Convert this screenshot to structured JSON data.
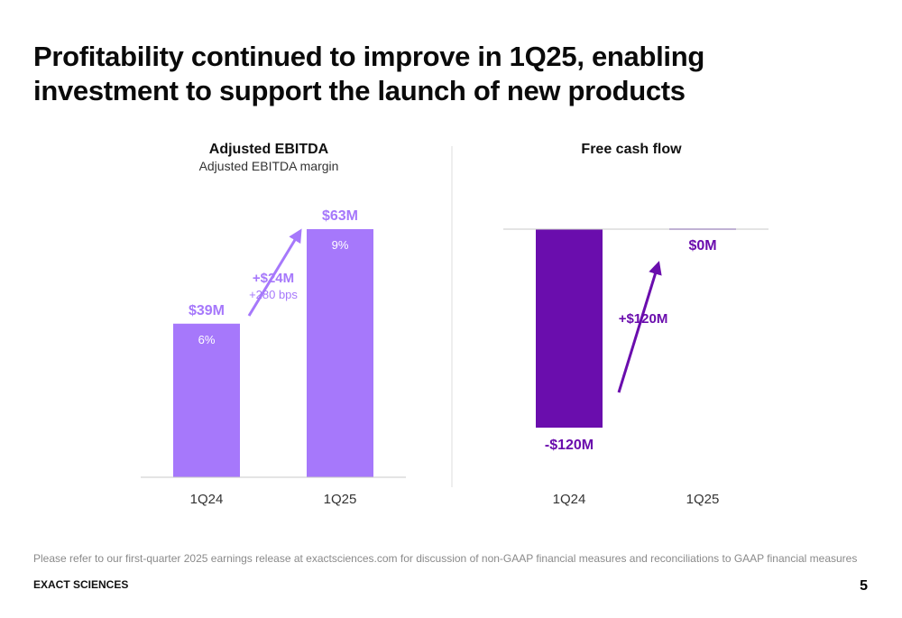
{
  "slide": {
    "title": "Profitability continued to improve in 1Q25, enabling investment to support the launch of new products",
    "footnote": "Please refer to our first-quarter 2025 earnings release at exactsciences.com for discussion of non-GAAP financial measures and reconciliations to GAAP financial measures",
    "brand": "EXACT SCIENCES",
    "page_number": "5"
  },
  "colors": {
    "ebitda_bar": "#a678fb",
    "fcf_bar": "#6a0dad",
    "axis": "#c8c8c8"
  },
  "chart_data": [
    {
      "type": "bar",
      "title": "Adjusted EBITDA",
      "subtitle": "Adjusted EBITDA margin",
      "categories": [
        "1Q24",
        "1Q25"
      ],
      "values": [
        39,
        63
      ],
      "value_labels": [
        "$39M",
        "$63M"
      ],
      "margin_labels": [
        "6%",
        "9%"
      ],
      "unit": "$M",
      "ylim": [
        0,
        63
      ],
      "change": {
        "label": "+$24M",
        "sublabel": "+280 bps"
      },
      "grid": false
    },
    {
      "type": "bar",
      "title": "Free cash flow",
      "categories": [
        "1Q24",
        "1Q25"
      ],
      "values": [
        -120,
        0
      ],
      "value_labels": [
        "-$120M",
        "$0M"
      ],
      "unit": "$M",
      "ylim": [
        -120,
        0
      ],
      "change": {
        "label": "+$120M"
      },
      "grid": false
    }
  ]
}
